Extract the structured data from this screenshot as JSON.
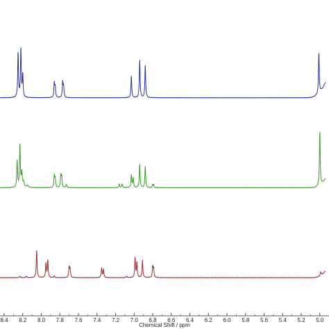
{
  "chart_data": {
    "type": "line",
    "xlabel": "Chemical Shift / ppm",
    "xlim": [
      8.4,
      4.95
    ],
    "x_reversed": true,
    "tick_labels": [
      "8.4",
      "8.2",
      "8.0",
      "7.8",
      "7.6",
      "7.4",
      "7.2",
      "7.0",
      "6.8",
      "6.6",
      "6.4",
      "6.2",
      "6.0",
      "5.8",
      "5.6",
      "5.4",
      "5.2",
      "5.0"
    ],
    "series": [
      {
        "color": "#27339b",
        "baseline_offset": 2.4,
        "peaks": [
          {
            "x": 8.25,
            "h": 0.6,
            "w": 0.005
          },
          {
            "x": 8.22,
            "h": 0.65,
            "w": 0.005
          },
          {
            "x": 8.2,
            "h": 0.3,
            "w": 0.005
          },
          {
            "x": 7.86,
            "h": 0.19,
            "w": 0.005
          },
          {
            "x": 7.85,
            "h": 0.14,
            "w": 0.005
          },
          {
            "x": 7.77,
            "h": 0.2,
            "w": 0.005
          },
          {
            "x": 7.76,
            "h": 0.15,
            "w": 0.005
          },
          {
            "x": 7.03,
            "h": 0.29,
            "w": 0.005
          },
          {
            "x": 6.94,
            "h": 0.5,
            "w": 0.005
          },
          {
            "x": 6.88,
            "h": 0.43,
            "w": 0.005
          },
          {
            "x": 5.01,
            "h": 0.54,
            "w": 0.005
          }
        ],
        "rise": {
          "start": 5.15,
          "end": 4.96,
          "h": 0.15
        }
      },
      {
        "color": "#3a9b2a",
        "baseline_offset": 1.2,
        "peaks": [
          {
            "x": 8.26,
            "h": 0.36,
            "w": 0.005
          },
          {
            "x": 8.23,
            "h": 0.57,
            "w": 0.005
          },
          {
            "x": 8.21,
            "h": 0.2,
            "w": 0.006
          },
          {
            "x": 8.19,
            "h": 0.07,
            "w": 0.008
          },
          {
            "x": 8.15,
            "h": 0.03,
            "w": 0.01
          },
          {
            "x": 7.86,
            "h": 0.16,
            "w": 0.005
          },
          {
            "x": 7.85,
            "h": 0.12,
            "w": 0.005
          },
          {
            "x": 7.79,
            "h": 0.16,
            "w": 0.005
          },
          {
            "x": 7.78,
            "h": 0.14,
            "w": 0.005
          },
          {
            "x": 7.73,
            "h": 0.04,
            "w": 0.006
          },
          {
            "x": 7.16,
            "h": 0.05,
            "w": 0.005
          },
          {
            "x": 7.13,
            "h": 0.05,
            "w": 0.005
          },
          {
            "x": 7.03,
            "h": 0.17,
            "w": 0.005
          },
          {
            "x": 7.01,
            "h": 0.13,
            "w": 0.005
          },
          {
            "x": 6.94,
            "h": 0.31,
            "w": 0.005
          },
          {
            "x": 6.88,
            "h": 0.28,
            "w": 0.005
          },
          {
            "x": 6.8,
            "h": 0.04,
            "w": 0.004
          },
          {
            "x": 6.79,
            "h": 0.04,
            "w": 0.004
          },
          {
            "x": 5.0,
            "h": 0.72,
            "w": 0.005
          }
        ],
        "rise": {
          "start": 5.1,
          "end": 4.96,
          "h": 0.08
        }
      },
      {
        "color": "#9b2a2a",
        "baseline_offset": 0.0,
        "peaks": [
          {
            "x": 8.23,
            "h": 0.02,
            "w": 0.005
          },
          {
            "x": 8.16,
            "h": 0.02,
            "w": 0.005
          },
          {
            "x": 8.05,
            "h": 0.37,
            "w": 0.005
          },
          {
            "x": 7.95,
            "h": 0.19,
            "w": 0.005
          },
          {
            "x": 7.93,
            "h": 0.23,
            "w": 0.005
          },
          {
            "x": 7.86,
            "h": 0.02,
            "w": 0.005
          },
          {
            "x": 7.7,
            "h": 0.14,
            "w": 0.005
          },
          {
            "x": 7.69,
            "h": 0.11,
            "w": 0.005
          },
          {
            "x": 7.35,
            "h": 0.13,
            "w": 0.005
          },
          {
            "x": 7.33,
            "h": 0.11,
            "w": 0.005
          },
          {
            "x": 7.08,
            "h": 0.02,
            "w": 0.004
          },
          {
            "x": 6.99,
            "h": 0.27,
            "w": 0.005
          },
          {
            "x": 6.97,
            "h": 0.2,
            "w": 0.005
          },
          {
            "x": 6.91,
            "h": 0.23,
            "w": 0.005
          },
          {
            "x": 6.8,
            "h": 0.14,
            "w": 0.005
          },
          {
            "x": 6.79,
            "h": 0.12,
            "w": 0.005
          },
          {
            "x": 4.99,
            "h": 0.05,
            "w": 0.006
          }
        ],
        "rise": {
          "start": 5.1,
          "end": 4.96,
          "h": 0.06
        }
      }
    ]
  }
}
